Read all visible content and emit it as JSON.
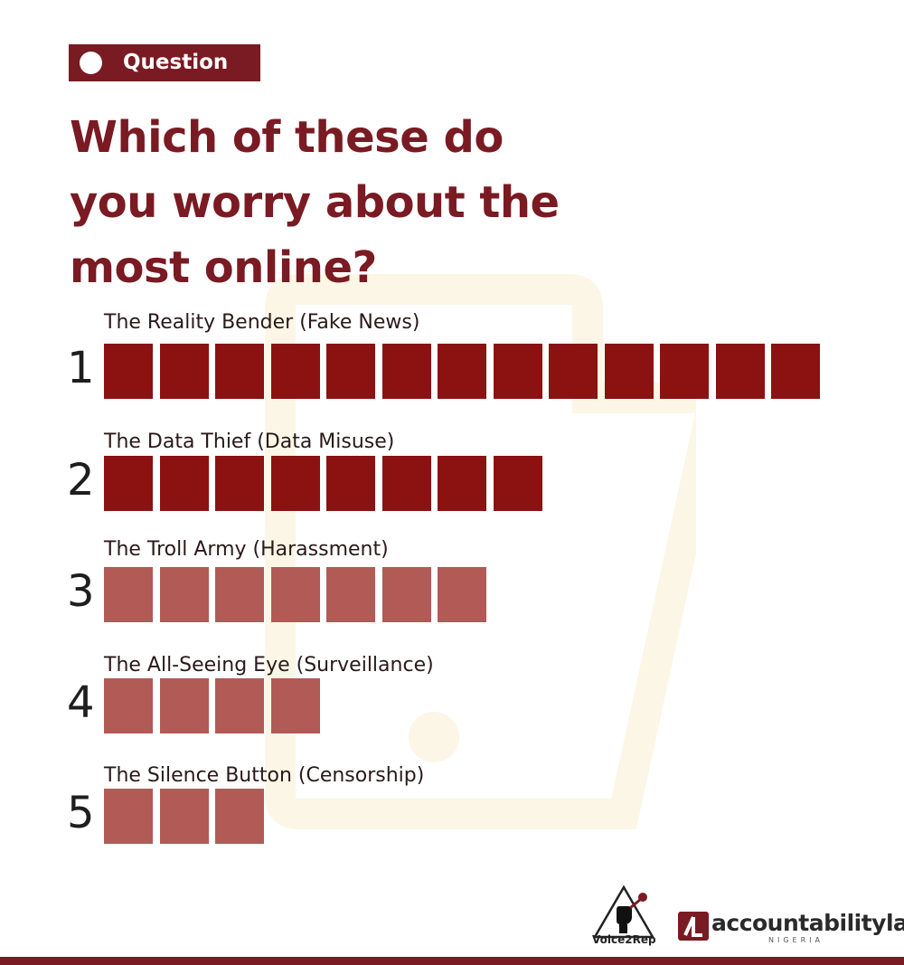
{
  "badge": {
    "label": "Question"
  },
  "title": "Which of these do you worry about the most online?",
  "colors": {
    "brand": "#7a1a22",
    "strong": "#8b1210",
    "muted": "#b25a55",
    "watermark": "#fbf6e6"
  },
  "chart_data": {
    "type": "bar",
    "orientation": "horizontal",
    "unit": "squares",
    "title": "Which of these do you worry about the most online?",
    "categories": [
      "The Reality Bender (Fake News)",
      "The Data Thief (Data Misuse)",
      "The Troll Army (Harassment)",
      "The All-Seeing Eye (Surveillance)",
      "The Silence Button (Censorship)"
    ],
    "ranks": [
      "1",
      "2",
      "3",
      "4",
      "5"
    ],
    "values": [
      13,
      8,
      7,
      4,
      3
    ],
    "shades": [
      "strong",
      "strong",
      "muted",
      "muted",
      "muted"
    ],
    "xlabel": "",
    "ylabel": "",
    "grid": false,
    "legend": "none"
  },
  "footer": {
    "voice2rep": {
      "label": "Voice2Rep",
      "icon": "raised-fist-microphone-icon"
    },
    "accountabilitylab": {
      "name": "accountabilitylab",
      "sub": "NIGERIA",
      "icon": "accountabilitylab-mark-icon"
    }
  }
}
